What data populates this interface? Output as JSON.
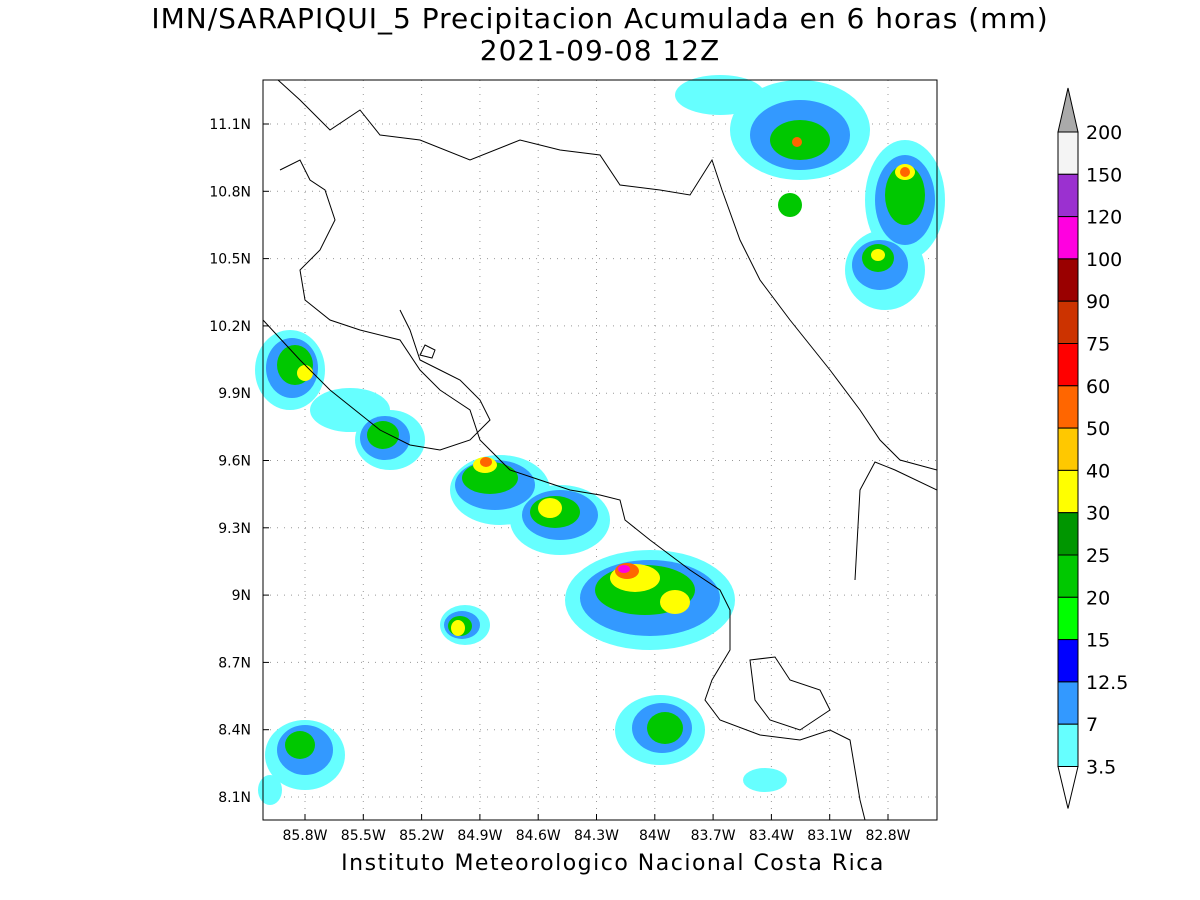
{
  "title": "IMN/SARAPIQUI_5 Precipitacion Acumulada en 6 horas (mm)",
  "subtitle": "2021-09-08 12Z",
  "map": {
    "lat_labels": [
      "11.1N",
      "10.8N",
      "10.5N",
      "10.2N",
      "9.9N",
      "9.6N",
      "9.3N",
      "9N",
      "8.7N",
      "8.4N",
      "8.1N"
    ],
    "lon_labels": [
      "85.8W",
      "85.5W",
      "85.2W",
      "84.9W",
      "84.6W",
      "84.3W",
      "84W",
      "83.7W",
      "83.4W",
      "83.1W",
      "82.8W"
    ]
  },
  "colorbar": {
    "labels": [
      "200",
      "150",
      "120",
      "100",
      "90",
      "75",
      "60",
      "50",
      "40",
      "30",
      "25",
      "20",
      "15",
      "12.5",
      "7",
      "3.5"
    ],
    "top_color": "#aaaaaa",
    "band_colors": [
      "#f4f4f4",
      "#9b30d0",
      "#ff00e0",
      "#9a0000",
      "#cc3300",
      "#ff0000",
      "#ff6600",
      "#ffc800",
      "#ffff00",
      "#009600",
      "#00c800",
      "#00ff00",
      "#0000ff",
      "#3399ff",
      "#66ffff"
    ],
    "bottom_color": "#ffffff"
  },
  "footer": "Instituto Meteorologico Nacional Costa Rica"
}
